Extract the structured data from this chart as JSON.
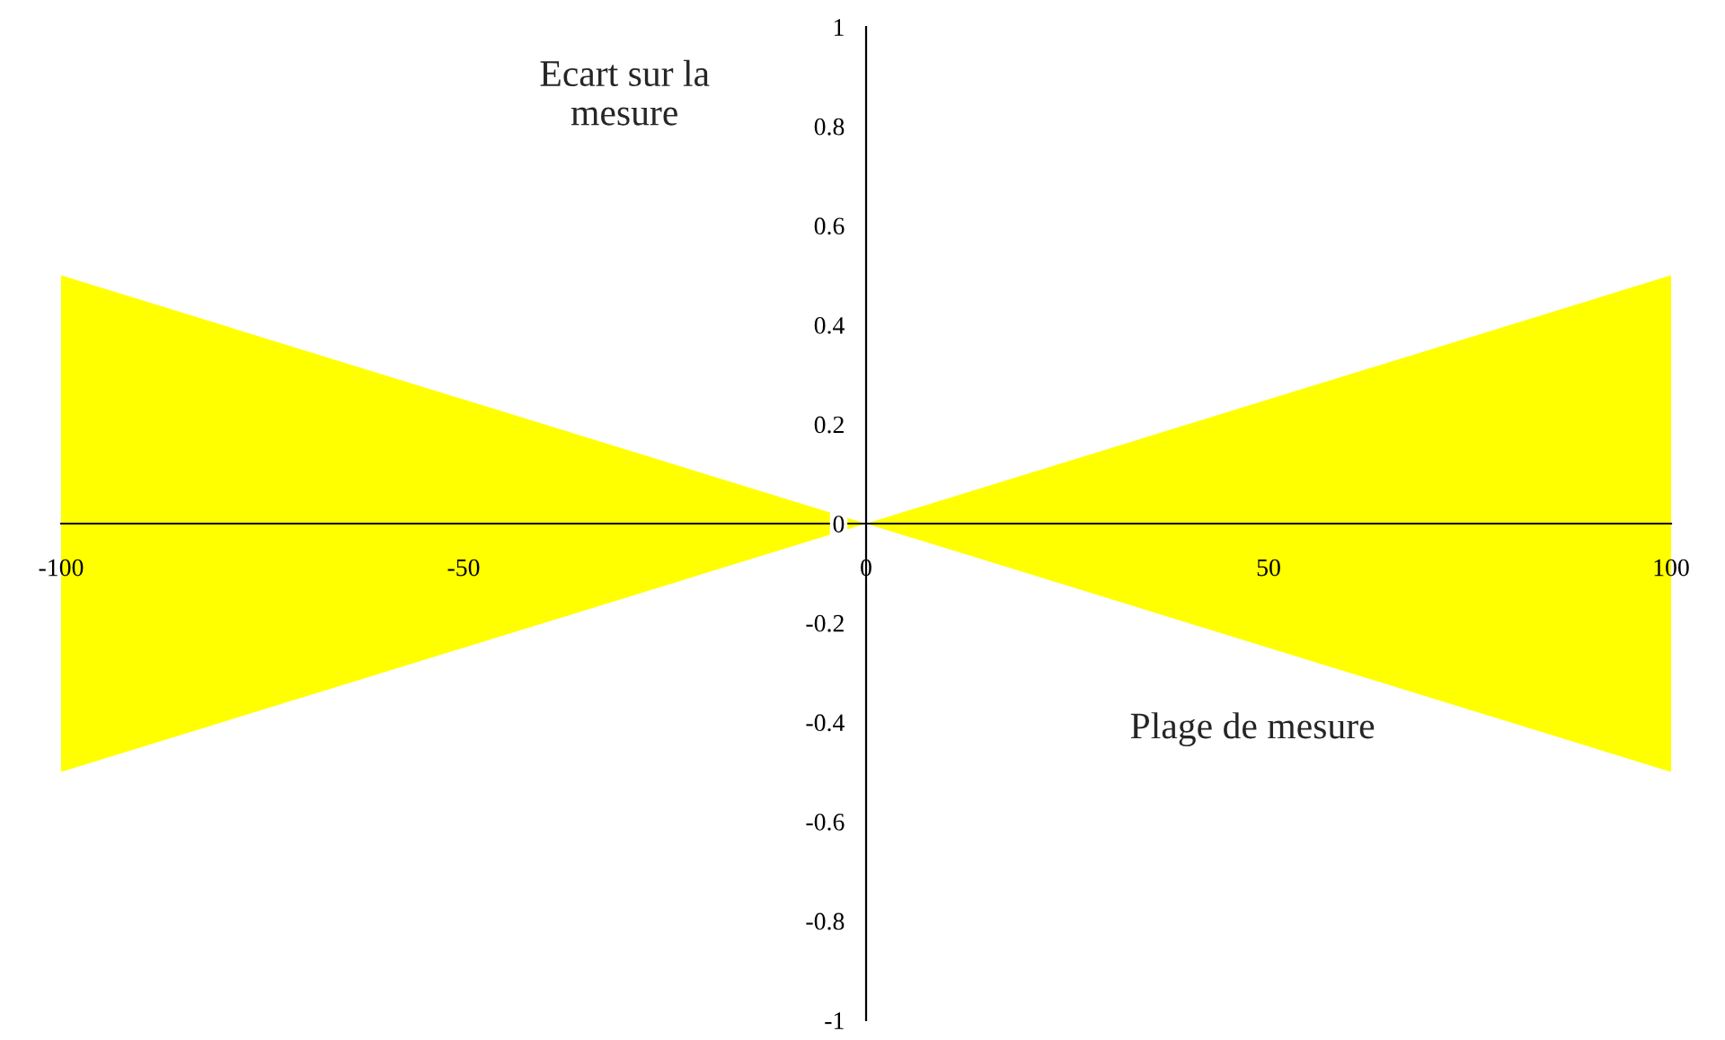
{
  "chart_data": {
    "type": "area",
    "xlabel": "Plage de mesure",
    "ylabel": "Ecart sur la\nmesure",
    "x": [
      -100,
      0,
      100
    ],
    "series": [
      {
        "color": "#ffff00",
        "values": [
          0.5,
          0,
          0.5
        ]
      },
      {
        "color": "#ffff00",
        "values": [
          -0.5,
          0,
          -0.5
        ]
      }
    ],
    "xlim": [
      -100,
      100
    ],
    "xticks": [
      -100,
      -50,
      0,
      50,
      100
    ],
    "ylim": [
      -1,
      1
    ],
    "yticks": [
      -1,
      -0.8,
      -0.6,
      -0.4,
      -0.2,
      0,
      0.2,
      0.4,
      0.6,
      0.8,
      1
    ],
    "grid": false,
    "legend": false
  }
}
